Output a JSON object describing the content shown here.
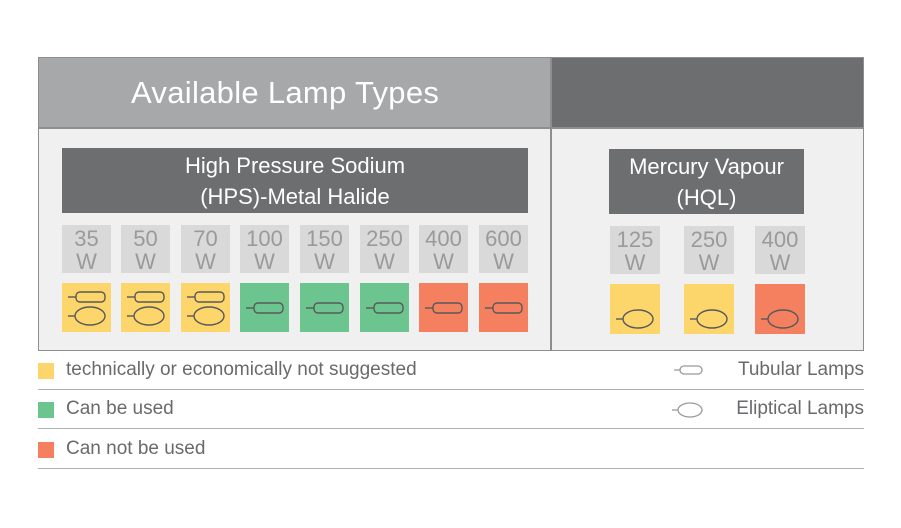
{
  "title": "Available Lamp Types",
  "groups": {
    "hps": {
      "title_line1": "High Pressure Sodium",
      "title_line2": "(HPS)-Metal Halide",
      "lamps": [
        {
          "value": "35",
          "unit": "W",
          "status": "not-suggested",
          "shapes": [
            "tubular",
            "elliptical"
          ]
        },
        {
          "value": "50",
          "unit": "W",
          "status": "not-suggested",
          "shapes": [
            "tubular",
            "elliptical"
          ]
        },
        {
          "value": "70",
          "unit": "W",
          "status": "not-suggested",
          "shapes": [
            "tubular",
            "elliptical"
          ]
        },
        {
          "value": "100",
          "unit": "W",
          "status": "can-use",
          "shapes": [
            "tubular"
          ]
        },
        {
          "value": "150",
          "unit": "W",
          "status": "can-use",
          "shapes": [
            "tubular"
          ]
        },
        {
          "value": "250",
          "unit": "W",
          "status": "can-use",
          "shapes": [
            "tubular"
          ]
        },
        {
          "value": "400",
          "unit": "W",
          "status": "cannot-use",
          "shapes": [
            "tubular"
          ]
        },
        {
          "value": "600",
          "unit": "W",
          "status": "cannot-use",
          "shapes": [
            "tubular"
          ]
        }
      ]
    },
    "hql": {
      "title_line1": "Mercury Vapour",
      "title_line2": "(HQL)",
      "lamps": [
        {
          "value": "125",
          "unit": "W",
          "status": "not-suggested",
          "shapes": [
            "elliptical"
          ]
        },
        {
          "value": "250",
          "unit": "W",
          "status": "not-suggested",
          "shapes": [
            "elliptical"
          ]
        },
        {
          "value": "400",
          "unit": "W",
          "status": "cannot-use",
          "shapes": [
            "elliptical"
          ]
        }
      ]
    }
  },
  "legend": {
    "not_suggested": "technically or economically not suggested",
    "can_use": "Can be used",
    "cannot_use": "Can not be used",
    "tubular": "Tubular Lamps",
    "elliptical": "Eliptical Lamps"
  },
  "colors": {
    "not-suggested": "#fcd56b",
    "can-use": "#6cc48e",
    "cannot-use": "#f5805f",
    "header_dark": "#6d6e70",
    "header_light": "#a7a8aa",
    "wattage_cell": "#d9d9d9"
  }
}
